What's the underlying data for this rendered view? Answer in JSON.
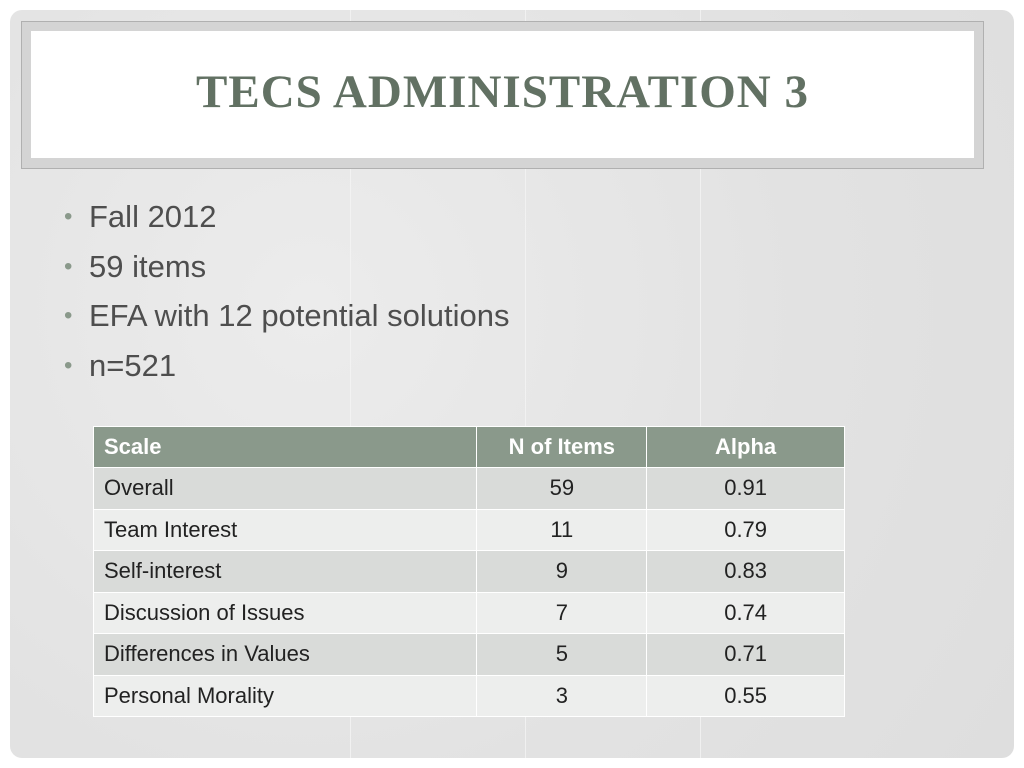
{
  "slide": {
    "title": "TECS Administration 3",
    "bullets": [
      "Fall 2012",
      "59 items",
      "EFA with 12 potential solutions",
      "n=521"
    ],
    "table": {
      "headers": [
        "Scale",
        "N of Items",
        "Alpha"
      ],
      "rows": [
        {
          "scale": "Overall",
          "items": "59",
          "alpha": "0.91"
        },
        {
          "scale": "Team Interest",
          "items": "11",
          "alpha": "0.79"
        },
        {
          "scale": "Self-interest",
          "items": "9",
          "alpha": "0.83"
        },
        {
          "scale": "Discussion of Issues",
          "items": "7",
          "alpha": "0.74"
        },
        {
          "scale": "Differences in Values",
          "items": "5",
          "alpha": "0.71"
        },
        {
          "scale": "Personal Morality",
          "items": "3",
          "alpha": "0.55"
        }
      ]
    }
  },
  "colors": {
    "title": "#627163",
    "header_bg": "#8a998b",
    "row_odd": "#d9dbd9",
    "row_even": "#edeeed",
    "slide_bg": "#e4e4e4"
  }
}
